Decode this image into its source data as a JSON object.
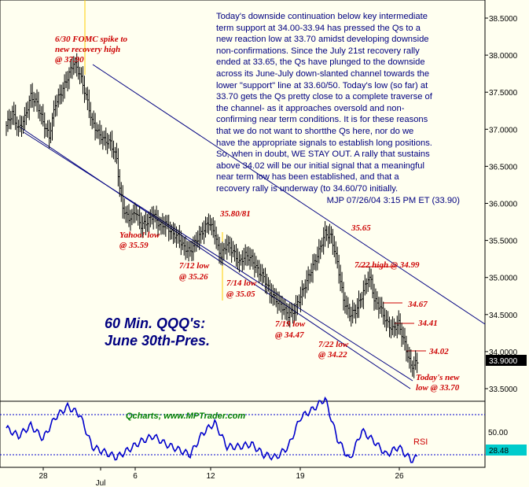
{
  "commentary": {
    "lines": [
      "Today's downside continuation below key intermediate",
      "term support at 34.00-33.94 has pressed the Qs to a",
      "new reaction low at 33.70 amidst developing downside",
      "non-confirmations. Since the July 21st recovery rally",
      "ended at 33.65, the Qs have plunged to the downside",
      "across its June-July down-slanted channel towards the",
      "lower \"support\" line at 33.60/50. Today's low (so far) at",
      "33.70 gets the Qs pretty close to a complete traverse of",
      "the channel- as it approaches oversold and non-",
      "confirming near term conditions. It is for these reasons",
      "that we do not want to shortthe Qs here, nor do we",
      "have the appropriate signals to establish long positions.",
      "So, when in doubt, WE STAY OUT. A rally that sustains",
      "above 34.02 will be our initial signal that a meaningful",
      "near term low has been established, and that a",
      "recovery rally is underway (to 34.60/70 initially."
    ],
    "signature": "MJP 07/26/04 3:15 PM ET  (33.90)"
  },
  "title": {
    "line1": "60 Min. QQQ's:",
    "line2": "June 30th-Pres."
  },
  "credit": "Qcharts; www.MPTrader.com",
  "chart_data": {
    "type": "ohlc",
    "symbol": "QQQ",
    "interval": "60 min",
    "price_axis": {
      "ticks": [
        "38.5000",
        "38.0000",
        "37.5000",
        "37.0000",
        "36.5000",
        "36.0000",
        "35.5000",
        "35.0000",
        "34.5000",
        "34.0000",
        "33.5000"
      ],
      "range": [
        33.25,
        38.75
      ],
      "last_price": "33.9000"
    },
    "rsi_axis": {
      "ticks": [
        "50.00"
      ],
      "last_value": "28.48",
      "label": "RSI"
    },
    "x_ticks": [
      "28",
      "Jul",
      "6",
      "12",
      "19",
      "26"
    ],
    "series_close": [
      [
        0,
        37.05
      ],
      [
        4,
        37.22
      ],
      [
        8,
        37.0
      ],
      [
        12,
        37.15
      ],
      [
        16,
        37.45
      ],
      [
        20,
        37.35
      ],
      [
        24,
        37.1
      ],
      [
        28,
        36.9
      ],
      [
        32,
        37.35
      ],
      [
        36,
        37.5
      ],
      [
        40,
        37.7
      ],
      [
        44,
        37.9
      ],
      [
        48,
        37.75
      ],
      [
        52,
        37.45
      ],
      [
        56,
        37.1
      ],
      [
        60,
        36.95
      ],
      [
        64,
        36.85
      ],
      [
        68,
        36.82
      ],
      [
        72,
        36.6
      ],
      [
        74,
        36.2
      ],
      [
        76,
        35.95
      ],
      [
        78,
        35.85
      ],
      [
        80,
        35.8
      ],
      [
        82,
        35.82
      ],
      [
        84,
        35.9
      ],
      [
        88,
        35.7
      ],
      [
        92,
        35.75
      ],
      [
        96,
        35.85
      ],
      [
        100,
        35.7
      ],
      [
        104,
        35.72
      ],
      [
        108,
        35.6
      ],
      [
        112,
        35.55
      ],
      [
        116,
        35.4
      ],
      [
        120,
        35.35
      ],
      [
        124,
        35.5
      ],
      [
        128,
        35.62
      ],
      [
        132,
        35.75
      ],
      [
        136,
        35.6
      ],
      [
        138,
        35.4
      ],
      [
        140,
        35.3
      ],
      [
        144,
        35.45
      ],
      [
        148,
        35.35
      ],
      [
        152,
        35.2
      ],
      [
        156,
        35.3
      ],
      [
        160,
        35.25
      ],
      [
        164,
        35.1
      ],
      [
        168,
        35.0
      ],
      [
        172,
        34.8
      ],
      [
        176,
        34.7
      ],
      [
        180,
        34.6
      ],
      [
        184,
        34.5
      ],
      [
        188,
        34.55
      ],
      [
        192,
        34.75
      ],
      [
        196,
        34.95
      ],
      [
        200,
        35.15
      ],
      [
        204,
        35.35
      ],
      [
        208,
        35.6
      ],
      [
        212,
        35.55
      ],
      [
        216,
        35.2
      ],
      [
        220,
        34.7
      ],
      [
        224,
        34.5
      ],
      [
        228,
        34.55
      ],
      [
        232,
        34.75
      ],
      [
        236,
        35.0
      ],
      [
        238,
        34.95
      ],
      [
        240,
        34.7
      ],
      [
        244,
        34.6
      ],
      [
        248,
        34.4
      ],
      [
        252,
        34.3
      ],
      [
        256,
        34.38
      ],
      [
        260,
        34.1
      ],
      [
        264,
        33.8
      ],
      [
        268,
        33.85
      ]
    ],
    "series_rsi": [
      [
        0,
        50
      ],
      [
        8,
        44
      ],
      [
        16,
        52
      ],
      [
        24,
        42
      ],
      [
        32,
        58
      ],
      [
        40,
        66
      ],
      [
        48,
        60
      ],
      [
        56,
        36
      ],
      [
        64,
        32
      ],
      [
        72,
        28
      ],
      [
        80,
        34
      ],
      [
        88,
        40
      ],
      [
        96,
        44
      ],
      [
        104,
        38
      ],
      [
        112,
        34
      ],
      [
        120,
        30
      ],
      [
        128,
        46
      ],
      [
        136,
        54
      ],
      [
        144,
        36
      ],
      [
        152,
        36
      ],
      [
        160,
        38
      ],
      [
        168,
        30
      ],
      [
        176,
        28
      ],
      [
        184,
        36
      ],
      [
        192,
        58
      ],
      [
        200,
        64
      ],
      [
        208,
        72
      ],
      [
        216,
        42
      ],
      [
        224,
        26
      ],
      [
        232,
        48
      ],
      [
        240,
        40
      ],
      [
        248,
        30
      ],
      [
        256,
        36
      ],
      [
        264,
        26
      ],
      [
        268,
        28
      ]
    ],
    "annotations": [
      {
        "text": "6/30 FOMC spike to",
        "price": 37.95
      },
      {
        "text": "new recovery high",
        "price": 37.9
      },
      {
        "text": "@ 37.90",
        "price": 37.9
      },
      {
        "text": "Yahoo! low",
        "price": 35.59
      },
      {
        "text": "@ 35.59",
        "price": 35.59
      },
      {
        "text": "35.80/81",
        "price": 35.81
      },
      {
        "text": "7/12 low",
        "price": 35.26
      },
      {
        "text": "@ 35.26",
        "price": 35.26
      },
      {
        "text": "7/14 low",
        "price": 35.05
      },
      {
        "text": "@ 35.05",
        "price": 35.05
      },
      {
        "text": "35.65",
        "price": 35.65
      },
      {
        "text": "7/22 high @ 34.99",
        "price": 34.99
      },
      {
        "text": "34.67",
        "price": 34.67
      },
      {
        "text": "34.41",
        "price": 34.41
      },
      {
        "text": "7/19 low",
        "price": 34.47
      },
      {
        "text": "@ 34.47",
        "price": 34.47
      },
      {
        "text": "7/22 low",
        "price": 34.22
      },
      {
        "text": "@ 34.22",
        "price": 34.22
      },
      {
        "text": "34.02",
        "price": 34.02
      },
      {
        "text": "Today's new",
        "price": 33.7
      },
      {
        "text": "low @ 33.70",
        "price": 33.7
      }
    ],
    "colors": {
      "background": "#fffff0",
      "bars": "#000000",
      "channel": "#000080",
      "annotation": "#cc0000",
      "commentary": "#000080",
      "credit": "#008000",
      "rsi": "#0000cc",
      "vertical_marker": "#ffcc00"
    }
  }
}
